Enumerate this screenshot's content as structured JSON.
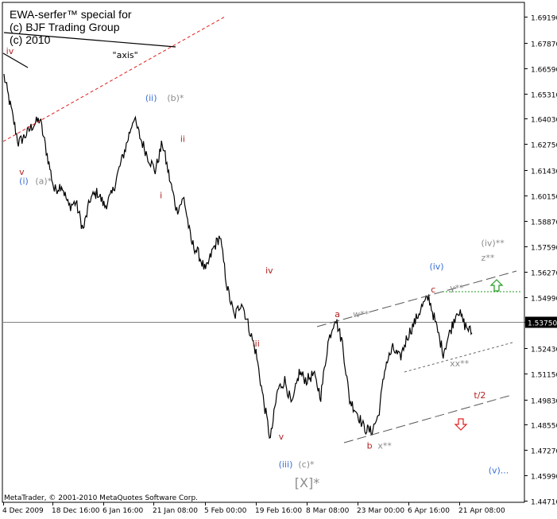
{
  "header": {
    "line1": "EWA-serfer™ special for",
    "line2": "(c) BJF Trading Group",
    "line3": "(c) 2010"
  },
  "footer": {
    "copyright": "MetaTrader, © 2001-2010 MetaQuotes Software Corp."
  },
  "colors": {
    "bg": "#ffffff",
    "price": "#000000",
    "grid": "#000000",
    "wave_red": "#b22222",
    "wave_blue": "#3b6fd6",
    "wave_gray": "#8c8c8c",
    "arrow_green": "#1f9b1f",
    "arrow_red": "#e02020",
    "trend_red": "#e02020"
  },
  "chart_data": {
    "type": "line",
    "instrument_label": "",
    "x_ticks": [
      "4 Dec 2009",
      "18 Dec 16:00",
      "6 Jan 16:00",
      "21 Jan 08:00",
      "5 Feb 00:00",
      "19 Feb 16:00",
      "8 Mar 08:00",
      "23 Mar 00:00",
      "6 Apr 16:00",
      "21 Apr 08:00"
    ],
    "y_ticks": [
      "1.69190",
      "1.67870",
      "1.66590",
      "1.65310",
      "1.64030",
      "1.62750",
      "1.61430",
      "1.60150",
      "1.58870",
      "1.57590",
      "1.56270",
      "1.54990",
      "1.53750",
      "1.52430",
      "1.51150",
      "1.49830",
      "1.48550",
      "1.47270",
      "1.45990",
      "1.44710"
    ],
    "ylim": [
      1.4471,
      1.6919
    ],
    "current_price": "1.53750",
    "series": [
      {
        "values": [
          1.662,
          1.645,
          1.628,
          1.632,
          1.637,
          1.64,
          1.622,
          1.604,
          1.607,
          1.596,
          1.598,
          1.584,
          1.6,
          1.603,
          1.596,
          1.602,
          1.615,
          1.627,
          1.641,
          1.63,
          1.621,
          1.614,
          1.628,
          1.61,
          1.594,
          1.6,
          1.578,
          1.572,
          1.563,
          1.574,
          1.581,
          1.555,
          1.54,
          1.548,
          1.535,
          1.522,
          1.499,
          1.478,
          1.503,
          1.508,
          1.495,
          1.512,
          1.508,
          1.511,
          1.5,
          1.527,
          1.54,
          1.527,
          1.498,
          1.492,
          1.484,
          1.482,
          1.49,
          1.516,
          1.524,
          1.519,
          1.53,
          1.537,
          1.545,
          1.55,
          1.536,
          1.522,
          1.533,
          1.544,
          1.536,
          1.532
        ]
      }
    ],
    "annotations": [
      {
        "text": "iv",
        "price": 1.673,
        "day": 0.4,
        "color": "red"
      },
      {
        "text": "\"axis\"",
        "price": 1.671,
        "day": 15.0,
        "color": "black"
      },
      {
        "text": "(ii)",
        "price": 1.6493,
        "day": 19.5,
        "color": "blue"
      },
      {
        "text": "(b)*",
        "price": 1.6493,
        "day": 22.5,
        "color": "gray"
      },
      {
        "text": "ii",
        "price": 1.6285,
        "day": 24.3,
        "color": "red"
      },
      {
        "text": "v",
        "price": 1.612,
        "day": 2.2,
        "color": "red"
      },
      {
        "text": "(i)",
        "price": 1.6072,
        "day": 2.2,
        "color": "blue"
      },
      {
        "text": "(a)*",
        "price": 1.6072,
        "day": 4.4,
        "color": "gray"
      },
      {
        "text": "i",
        "price": 1.6,
        "day": 21.5,
        "color": "red"
      },
      {
        "text": "iv",
        "price": 1.562,
        "day": 36.0,
        "color": "red"
      },
      {
        "text": "iii",
        "price": 1.525,
        "day": 34.2,
        "color": "red"
      },
      {
        "text": "a",
        "price": 1.54,
        "day": 45.5,
        "color": "red"
      },
      {
        "text": "w**",
        "price": 1.54,
        "day": 48.0,
        "color": "gray"
      },
      {
        "text": "(iv)",
        "price": 1.564,
        "day": 58.5,
        "color": "blue"
      },
      {
        "text": "c",
        "price": 1.5525,
        "day": 58.7,
        "color": "red"
      },
      {
        "text": "y**",
        "price": 1.5533,
        "day": 61.3,
        "color": "gray"
      },
      {
        "text": "(iv)**",
        "price": 1.576,
        "day": 65.6,
        "color": "gray"
      },
      {
        "text": "z**",
        "price": 1.5685,
        "day": 65.6,
        "color": "gray"
      },
      {
        "text": "xx**",
        "price": 1.515,
        "day": 61.3,
        "color": "gray"
      },
      {
        "text": "t/2",
        "price": 1.499,
        "day": 64.6,
        "color": "red"
      },
      {
        "text": "b",
        "price": 1.4735,
        "day": 49.9,
        "color": "red"
      },
      {
        "text": "x**",
        "price": 1.4735,
        "day": 51.4,
        "color": "gray"
      },
      {
        "text": "v",
        "price": 1.478,
        "day": 37.8,
        "color": "red"
      },
      {
        "text": "(iii)",
        "price": 1.464,
        "day": 37.8,
        "color": "blue"
      },
      {
        "text": "(c)*",
        "price": 1.464,
        "day": 40.5,
        "color": "gray"
      },
      {
        "text": "[X]*",
        "price": 1.454,
        "day": 40.0,
        "color": "gray"
      },
      {
        "text": "(v)...",
        "price": 1.461,
        "day": 66.6,
        "color": "blue"
      }
    ]
  }
}
